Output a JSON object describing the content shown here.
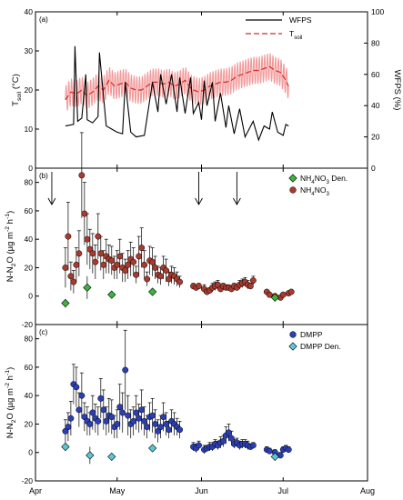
{
  "colors": {
    "wfps": "#000000",
    "tsoil": "#d42a2a",
    "tsoil_band": "#f29a9a",
    "nh4no3_point": "#a83a2e",
    "nh4no3_den": "#3cb43c",
    "dmpp_point": "#2b3fb5",
    "dmpp_den": "#58c9d3",
    "error_bar": "#000000"
  },
  "x_axis": {
    "ticks": [
      {
        "label": "Apr",
        "day": 0
      },
      {
        "label": "May",
        "day": 30
      },
      {
        "label": "Jun",
        "day": 61
      },
      {
        "label": "Jul",
        "day": 91
      },
      {
        "label": "Aug",
        "day": 122
      }
    ],
    "range": [
      0,
      122
    ]
  },
  "chart_data": [
    {
      "type": "line",
      "panel_label": "(a)",
      "ylabel": "T_soil (°C)",
      "y2label": "WFPS (%)",
      "ylim": [
        0,
        40
      ],
      "y2lim": [
        0,
        100
      ],
      "yticks": [
        0,
        10,
        20,
        30,
        40
      ],
      "y2ticks": [
        0,
        20,
        40,
        60,
        80,
        100
      ],
      "legend": [
        "WFPS",
        "T_soil"
      ],
      "legend_position": "top-right",
      "series": [
        {
          "name": "WFPS",
          "axis": "right",
          "x": [
            11,
            14,
            14.5,
            15.5,
            17,
            18.5,
            19,
            21,
            23,
            23.5,
            26,
            28,
            30,
            32,
            33,
            35,
            37,
            40,
            43,
            45,
            46,
            48,
            50,
            52,
            53,
            55,
            57,
            58,
            60,
            61,
            62,
            63,
            65,
            66,
            68,
            70,
            71,
            73,
            75,
            77,
            80,
            82,
            84,
            86,
            87,
            89,
            91,
            92,
            93
          ],
          "y": [
            27,
            28,
            78,
            30,
            32,
            60,
            31,
            29,
            33,
            74,
            27,
            25,
            23,
            22,
            55,
            23,
            20,
            21,
            55,
            36,
            60,
            41,
            60,
            36,
            58,
            35,
            58,
            35,
            42,
            31,
            56,
            40,
            55,
            30,
            48,
            26,
            40,
            22,
            38,
            20,
            30,
            18,
            27,
            25,
            36,
            23,
            21,
            28,
            27
          ]
        },
        {
          "name": "T_soil",
          "axis": "left",
          "x": [
            11,
            13,
            15,
            17,
            19,
            21,
            23,
            25,
            27,
            29,
            31,
            33,
            35,
            37,
            39,
            41,
            43,
            45,
            47,
            49,
            51,
            53,
            55,
            57,
            58,
            60,
            62,
            64,
            66,
            68,
            70,
            72,
            74,
            76,
            78,
            80,
            82,
            84,
            86,
            88,
            90,
            92,
            93
          ],
          "y": [
            17.5,
            19.5,
            19,
            20,
            18.5,
            19.5,
            21,
            20,
            22.5,
            21,
            21.5,
            22,
            20.5,
            20,
            20,
            21,
            22,
            22,
            21.5,
            22,
            21,
            21.5,
            22.5,
            20.5,
            20,
            19.5,
            20,
            21,
            21.5,
            22,
            22,
            22.5,
            23.5,
            24,
            24.5,
            25,
            25,
            25.5,
            26,
            25,
            24.5,
            22.5,
            21
          ],
          "daily_amplitude": 3.5
        }
      ]
    },
    {
      "type": "scatter",
      "panel_label": "(b)",
      "ylabel": "N-N2O (µg m-2 h-1)",
      "ylim": [
        -20,
        90
      ],
      "yticks": [
        -20,
        0,
        20,
        40,
        60,
        80
      ],
      "legend": [
        "NH4NO3 Den.",
        "NH4NO3"
      ],
      "legend_position": "top-right",
      "arrows_day": [
        6,
        60,
        74
      ],
      "series": [
        {
          "name": "NH4NO3",
          "x": [
            11,
            12,
            13,
            14,
            15,
            16,
            17,
            18,
            19,
            20,
            21,
            22,
            23,
            24,
            25,
            26,
            27,
            28,
            29,
            30,
            31,
            32,
            33,
            34,
            35,
            36,
            37,
            38,
            39,
            40,
            41,
            42,
            43,
            44,
            45,
            46,
            47,
            48,
            49,
            50,
            51,
            52,
            53,
            58,
            59,
            60,
            62,
            63,
            64,
            65,
            66,
            67,
            68,
            69,
            70,
            71,
            72,
            73,
            74,
            75,
            76,
            77,
            78,
            79,
            80,
            85,
            86,
            88,
            90,
            91,
            93,
            94
          ],
          "y": [
            20,
            42,
            14,
            10,
            22,
            30,
            85,
            58,
            40,
            33,
            30,
            24,
            42,
            30,
            22,
            28,
            26,
            25,
            20,
            22,
            28,
            20,
            18,
            22,
            26,
            24,
            15,
            28,
            34,
            22,
            12,
            25,
            24,
            20,
            15,
            14,
            20,
            18,
            12,
            15,
            14,
            12,
            10,
            7,
            6,
            7,
            5,
            3,
            4,
            6,
            7,
            8,
            5,
            7,
            6,
            6,
            5,
            7,
            6,
            8,
            9,
            10,
            8,
            7,
            11,
            3,
            1,
            0,
            -1,
            1,
            2,
            3
          ],
          "err": [
            14,
            24,
            10,
            8,
            12,
            16,
            30,
            22,
            18,
            14,
            14,
            12,
            16,
            12,
            10,
            12,
            10,
            10,
            8,
            10,
            12,
            10,
            8,
            10,
            12,
            10,
            6,
            14,
            14,
            10,
            5,
            10,
            10,
            8,
            6,
            6,
            8,
            8,
            5,
            6,
            6,
            5,
            4,
            2,
            2,
            2,
            3,
            2,
            2,
            3,
            3,
            3,
            2,
            2,
            2,
            2,
            2,
            2,
            2,
            3,
            3,
            3,
            3,
            2,
            3,
            1,
            1,
            1,
            1,
            1,
            1,
            1
          ]
        },
        {
          "name": "NH4NO3 Den.",
          "x": [
            11,
            19,
            28,
            43,
            88
          ],
          "y": [
            -5,
            6,
            1,
            3,
            -1
          ],
          "err": [
            3,
            8,
            2,
            2,
            1
          ]
        }
      ]
    },
    {
      "type": "scatter",
      "panel_label": "(c)",
      "ylabel": "N-N2O (µg m-2 h-1)",
      "ylim": [
        -20,
        90
      ],
      "yticks": [
        -20,
        0,
        20,
        40,
        60,
        80
      ],
      "legend": [
        "DMPP",
        "DMPP Den."
      ],
      "legend_position": "top-right",
      "series": [
        {
          "name": "DMPP",
          "x": [
            11,
            12,
            13,
            14,
            15,
            16,
            17,
            18,
            19,
            20,
            21,
            22,
            23,
            24,
            25,
            26,
            27,
            28,
            29,
            30,
            31,
            32,
            33,
            34,
            35,
            36,
            37,
            38,
            39,
            40,
            41,
            42,
            43,
            44,
            45,
            46,
            47,
            48,
            49,
            50,
            51,
            52,
            53,
            58,
            59,
            60,
            62,
            63,
            64,
            65,
            66,
            67,
            68,
            69,
            70,
            71,
            72,
            73,
            74,
            75,
            76,
            77,
            78,
            79,
            80,
            85,
            86,
            88,
            90,
            91,
            92,
            93
          ],
          "y": [
            15,
            18,
            24,
            48,
            46,
            30,
            40,
            25,
            22,
            20,
            28,
            24,
            22,
            38,
            30,
            22,
            26,
            25,
            18,
            20,
            32,
            28,
            58,
            26,
            20,
            22,
            28,
            24,
            30,
            22,
            18,
            25,
            26,
            20,
            15,
            18,
            25,
            20,
            16,
            22,
            20,
            18,
            16,
            4,
            3,
            5,
            2,
            3,
            4,
            4,
            6,
            5,
            7,
            8,
            12,
            14,
            10,
            6,
            7,
            5,
            6,
            6,
            5,
            4,
            5,
            2,
            1,
            0,
            -2,
            2,
            3,
            2
          ],
          "err": [
            8,
            10,
            12,
            14,
            14,
            12,
            16,
            10,
            10,
            8,
            12,
            10,
            10,
            14,
            14,
            10,
            12,
            12,
            8,
            10,
            16,
            14,
            28,
            14,
            10,
            10,
            12,
            10,
            14,
            10,
            8,
            10,
            12,
            10,
            8,
            8,
            10,
            8,
            6,
            8,
            8,
            6,
            6,
            3,
            3,
            3,
            3,
            2,
            3,
            3,
            3,
            3,
            4,
            4,
            6,
            6,
            5,
            3,
            3,
            3,
            3,
            3,
            3,
            2,
            2,
            2,
            2,
            2,
            2,
            2,
            2,
            2
          ]
        },
        {
          "name": "DMPP Den.",
          "x": [
            11,
            20,
            28,
            43,
            88
          ],
          "y": [
            4,
            -2,
            -3,
            3,
            -3
          ],
          "err": [
            3,
            6,
            2,
            2,
            1
          ]
        }
      ]
    }
  ]
}
